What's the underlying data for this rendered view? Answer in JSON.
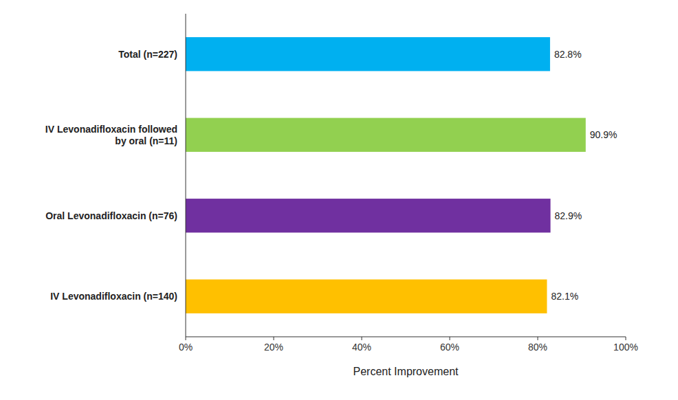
{
  "chart_data": {
    "type": "bar",
    "orientation": "horizontal",
    "categories": [
      "IV Levonadifloxacin (n=140)",
      "Oral Levonadifloxacin (n=76)",
      "IV Levonadifloxacin followed\nby oral (n=11)",
      "Total (n=227)"
    ],
    "values": [
      82.1,
      82.9,
      90.9,
      82.8
    ],
    "value_labels": [
      "82.1%",
      "82.9%",
      "90.9%",
      "82.8%"
    ],
    "data_labels": true,
    "colors": [
      "#FFC000",
      "#7030A0",
      "#92D050",
      "#00B0F0"
    ],
    "xlabel": "Percent Improvement",
    "xlim": [
      0,
      100
    ],
    "xticks": [
      {
        "value": 0,
        "label": "0%"
      },
      {
        "value": 20,
        "label": "20%"
      },
      {
        "value": 40,
        "label": "40%"
      },
      {
        "value": 60,
        "label": "60%"
      },
      {
        "value": 80,
        "label": "80%"
      },
      {
        "value": 100,
        "label": "100%"
      }
    ]
  }
}
